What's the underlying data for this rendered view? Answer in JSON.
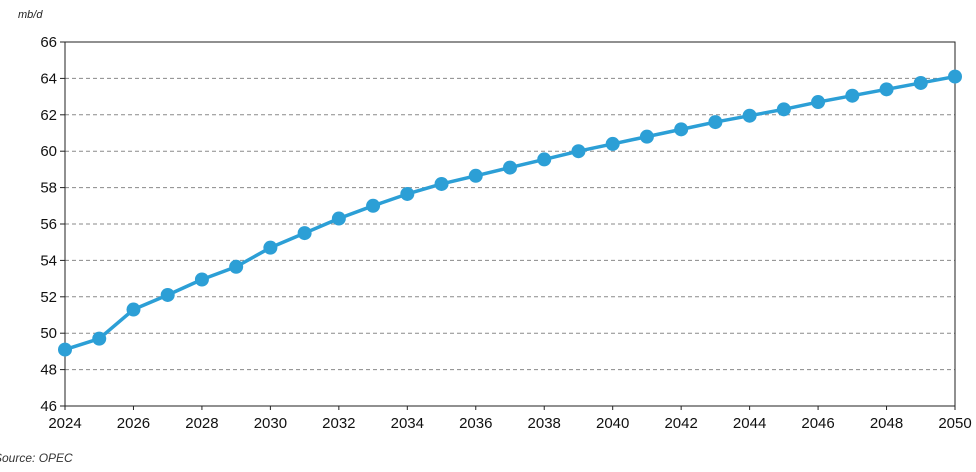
{
  "chart_data": {
    "type": "line",
    "unit_label": "mb/d",
    "source": "Source: OPEC",
    "x": [
      2024,
      2025,
      2026,
      2027,
      2028,
      2029,
      2030,
      2031,
      2032,
      2033,
      2034,
      2035,
      2036,
      2037,
      2038,
      2039,
      2040,
      2041,
      2042,
      2043,
      2044,
      2045,
      2046,
      2047,
      2048,
      2049,
      2050
    ],
    "series": [
      {
        "values": [
          49.1,
          49.7,
          51.3,
          52.1,
          52.95,
          53.65,
          54.7,
          55.5,
          56.3,
          57.0,
          57.65,
          58.2,
          58.65,
          59.1,
          59.55,
          60.0,
          60.4,
          60.8,
          61.2,
          61.6,
          61.95,
          62.3,
          62.7,
          63.05,
          63.4,
          63.75,
          64.1
        ],
        "color": "#2c9fd6"
      }
    ],
    "xlim": [
      2024,
      2050
    ],
    "ylim": [
      46,
      66
    ],
    "x_ticks": [
      2024,
      2026,
      2028,
      2030,
      2032,
      2034,
      2036,
      2038,
      2040,
      2042,
      2044,
      2046,
      2048,
      2050
    ],
    "y_ticks": [
      46,
      48,
      50,
      52,
      54,
      56,
      58,
      60,
      62,
      64,
      66
    ],
    "grid": "horizontal dashed"
  }
}
